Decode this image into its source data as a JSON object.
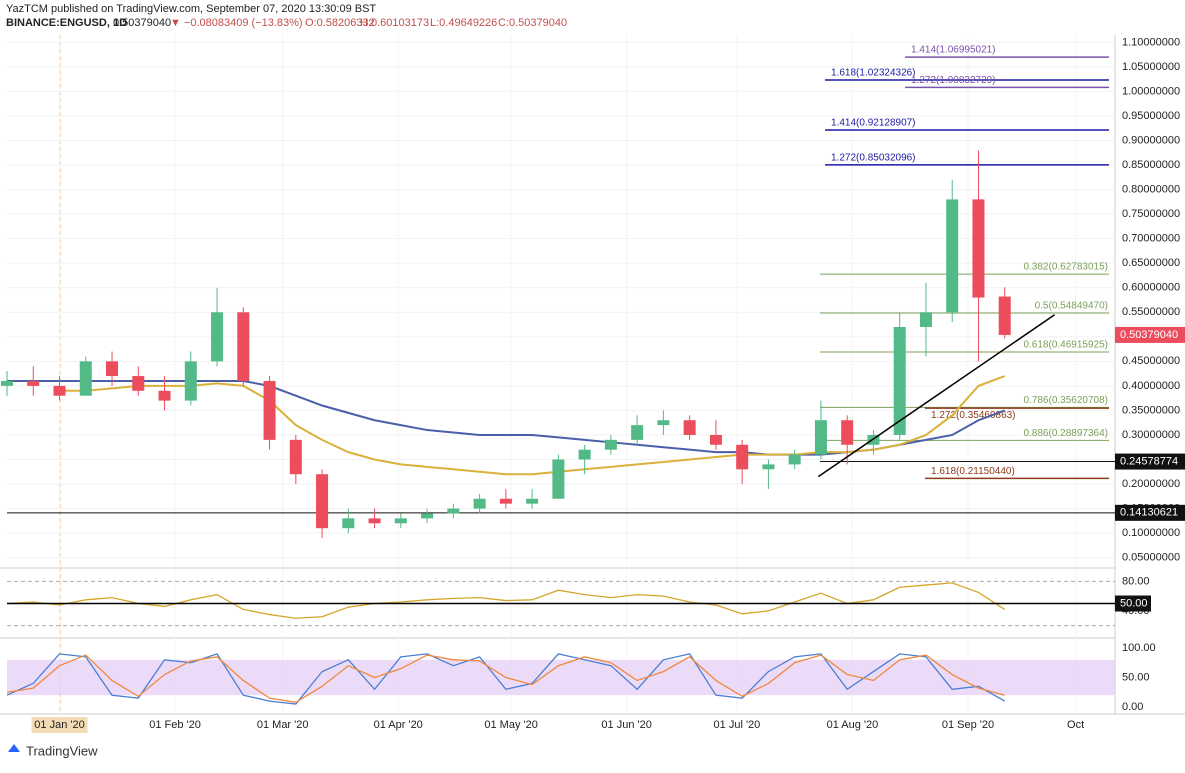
{
  "header": {
    "publisher": "YazTCM published on TradingView.com, September 07, 2020 13:30:09 BST",
    "symbol": "BINANCE:ENGUSD, 1D",
    "price": "0.50379040",
    "change": "▼ −0.08083409 (−13.83%)",
    "open": "O:0.58206332",
    "high": "H:0.60103173",
    "low": "L:0.49649226",
    "close": "C:0.50379040"
  },
  "chart_data": [
    {
      "type": "candlestick",
      "x": [
        0,
        1,
        2,
        3,
        4,
        5,
        6,
        7,
        8,
        9,
        10,
        11,
        12,
        13,
        14,
        15,
        16,
        17,
        18,
        19,
        20,
        21,
        22,
        23,
        24,
        25,
        26,
        27,
        28,
        29,
        30,
        31,
        32,
        33,
        34,
        35,
        36,
        37,
        38
      ],
      "open": [
        0.4,
        0.41,
        0.4,
        0.38,
        0.45,
        0.42,
        0.39,
        0.37,
        0.45,
        0.55,
        0.41,
        0.29,
        0.22,
        0.11,
        0.13,
        0.12,
        0.13,
        0.14,
        0.15,
        0.17,
        0.16,
        0.17,
        0.25,
        0.27,
        0.29,
        0.32,
        0.33,
        0.3,
        0.28,
        0.23,
        0.24,
        0.26,
        0.33,
        0.28,
        0.3,
        0.52,
        0.55,
        0.78,
        0.58206332
      ],
      "high": [
        0.43,
        0.44,
        0.42,
        0.46,
        0.47,
        0.44,
        0.42,
        0.47,
        0.6,
        0.56,
        0.42,
        0.3,
        0.23,
        0.15,
        0.15,
        0.14,
        0.15,
        0.16,
        0.18,
        0.19,
        0.19,
        0.26,
        0.28,
        0.3,
        0.34,
        0.35,
        0.34,
        0.33,
        0.29,
        0.25,
        0.27,
        0.37,
        0.34,
        0.31,
        0.55,
        0.61,
        0.82,
        0.88,
        0.60103173
      ],
      "low": [
        0.38,
        0.38,
        0.37,
        0.38,
        0.4,
        0.38,
        0.35,
        0.36,
        0.44,
        0.4,
        0.27,
        0.2,
        0.09,
        0.1,
        0.11,
        0.11,
        0.12,
        0.13,
        0.14,
        0.15,
        0.15,
        0.17,
        0.22,
        0.26,
        0.28,
        0.3,
        0.29,
        0.27,
        0.2,
        0.19,
        0.23,
        0.25,
        0.24,
        0.26,
        0.29,
        0.46,
        0.53,
        0.45,
        0.49649226
      ],
      "close": [
        0.41,
        0.4,
        0.38,
        0.45,
        0.42,
        0.39,
        0.37,
        0.45,
        0.55,
        0.41,
        0.29,
        0.22,
        0.11,
        0.13,
        0.12,
        0.13,
        0.14,
        0.15,
        0.17,
        0.16,
        0.17,
        0.25,
        0.27,
        0.29,
        0.32,
        0.33,
        0.3,
        0.28,
        0.23,
        0.24,
        0.26,
        0.33,
        0.28,
        0.3,
        0.52,
        0.55,
        0.78,
        0.58,
        0.5037904
      ],
      "up_color": "#53b987",
      "down_color": "#eb4d5c",
      "xlim": [
        0,
        42.2
      ],
      "xticks": [
        {
          "value": 2.0,
          "label": "01 Jan '20"
        },
        {
          "value": 6.4,
          "label": "01 Feb '20"
        },
        {
          "value": 10.5,
          "label": "01 Mar '20"
        },
        {
          "value": 14.9,
          "label": "01 Apr '20"
        },
        {
          "value": 19.2,
          "label": "01 May '20"
        },
        {
          "value": 23.6,
          "label": "01 Jun '20"
        },
        {
          "value": 27.8,
          "label": "01 Jul '20"
        },
        {
          "value": 32.2,
          "label": "01 Aug '20"
        },
        {
          "value": 36.6,
          "label": "01 Sep '20"
        },
        {
          "value": 40.7,
          "label": "Oct"
        }
      ],
      "ylim": [
        0.035,
        1.115
      ],
      "yticks": [
        {
          "value": 0.05,
          "label": "0.05000000"
        },
        {
          "value": 0.1,
          "label": "0.10000000"
        },
        {
          "value": 0.15,
          "label": "0.15000000"
        },
        {
          "value": 0.2,
          "label": "0.20000000"
        },
        {
          "value": 0.25,
          "label": "0.25000000"
        },
        {
          "value": 0.3,
          "label": "0.30000000"
        },
        {
          "value": 0.35,
          "label": "0.35000000"
        },
        {
          "value": 0.4,
          "label": "0.40000000"
        },
        {
          "value": 0.45,
          "label": "0.45000000"
        },
        {
          "value": 0.5,
          "label": "0.50000000"
        },
        {
          "value": 0.55,
          "label": "0.55000000"
        },
        {
          "value": 0.6,
          "label": "0.60000000"
        },
        {
          "value": 0.65,
          "label": "0.65000000"
        },
        {
          "value": 0.7,
          "label": "0.70000000"
        },
        {
          "value": 0.75,
          "label": "0.75000000"
        },
        {
          "value": 0.8,
          "label": "0.80000000"
        },
        {
          "value": 0.85,
          "label": "0.85000000"
        },
        {
          "value": 0.9,
          "label": "0.90000000"
        },
        {
          "value": 0.95,
          "label": "0.95000000"
        },
        {
          "value": 1.0,
          "label": "1.00000000"
        },
        {
          "value": 1.05,
          "label": "1.05000000"
        },
        {
          "value": 1.1,
          "label": "1.10000000"
        }
      ],
      "lines": [
        {
          "color": "#4a5fa8",
          "values": [
            0.41,
            0.41,
            0.41,
            0.41,
            0.41,
            0.41,
            0.41,
            0.41,
            0.41,
            0.41,
            0.4,
            0.38,
            0.36,
            0.345,
            0.33,
            0.32,
            0.31,
            0.305,
            0.3,
            0.3,
            0.3,
            0.295,
            0.29,
            0.285,
            0.28,
            0.275,
            0.27,
            0.265,
            0.265,
            0.26,
            0.26,
            0.26,
            0.265,
            0.27,
            0.28,
            0.29,
            0.3,
            0.33,
            0.35
          ]
        },
        {
          "color": "#d9b13b",
          "values": [
            null,
            null,
            0.39,
            0.39,
            0.395,
            0.4,
            0.4,
            0.4,
            0.405,
            0.4,
            0.37,
            0.32,
            0.29,
            0.265,
            0.25,
            0.24,
            0.235,
            0.23,
            0.225,
            0.22,
            0.22,
            0.225,
            0.23,
            0.235,
            0.24,
            0.245,
            0.25,
            0.255,
            0.26,
            0.26,
            0.26,
            0.265,
            0.265,
            0.27,
            0.28,
            0.3,
            0.34,
            0.4,
            0.42
          ]
        }
      ],
      "levels": [
        {
          "label": "1.414(1.06995021)",
          "value": 1.06995021,
          "color": "#7b52ab"
        },
        {
          "label": "1.618(1.02324326)",
          "value": 1.02324326,
          "color": "#1a1aa6"
        },
        {
          "label": "1.272(1.00832729)",
          "value": 1.00832729,
          "color": "#7b52ab"
        },
        {
          "label": "1.414(0.92128907)",
          "value": 0.92128907,
          "color": "#1a1aa6"
        },
        {
          "label": "1.272(0.85032096)",
          "value": 0.85032096,
          "color": "#1a1aa6"
        },
        {
          "label": "0.382(0.62783015)",
          "value": 0.62783015,
          "color": "#7ba05b"
        },
        {
          "label": "0.5(0.54849470)",
          "value": 0.5484947,
          "color": "#7ba05b"
        },
        {
          "label": "0.618(0.46915925)",
          "value": 0.46915925,
          "color": "#7ba05b"
        },
        {
          "label": "0.786(0.35620708)",
          "value": 0.35620708,
          "color": "#7ba05b"
        },
        {
          "label": "1.272(0.35460863)",
          "value": 0.35460863,
          "color": "#8b3a1a"
        },
        {
          "label": "0.886(0.28897364)",
          "value": 0.28897364,
          "color": "#7ba05b"
        },
        {
          "label": "1.618(0.21150440)",
          "value": 0.2115044,
          "color": "#8b3a1a"
        }
      ],
      "price_lines": [
        {
          "value": 0.24578774,
          "label": "0.24578774"
        },
        {
          "value": 0.14130621,
          "label": "0.14130621"
        }
      ],
      "last_price": {
        "value": 0.5037904,
        "label": "0.50379040",
        "color": "#eb4d5c"
      },
      "trendline": {
        "x": [
          30.9,
          39.9
        ],
        "y": [
          0.215,
          0.545
        ]
      }
    },
    {
      "type": "line",
      "x": [
        0,
        1,
        2,
        3,
        4,
        5,
        6,
        7,
        8,
        9,
        10,
        11,
        12,
        13,
        14,
        15,
        16,
        17,
        18,
        19,
        20,
        21,
        22,
        23,
        24,
        25,
        26,
        27,
        28,
        29,
        30,
        31,
        32,
        33,
        34,
        35,
        36,
        37,
        38
      ],
      "values": [
        50,
        52,
        48,
        55,
        58,
        50,
        46,
        55,
        62,
        42,
        35,
        30,
        32,
        45,
        50,
        52,
        55,
        57,
        58,
        54,
        55,
        68,
        62,
        58,
        62,
        60,
        52,
        48,
        36,
        40,
        52,
        64,
        50,
        55,
        72,
        75,
        78,
        65,
        42
      ],
      "color": "#d4a62a",
      "ylim": [
        10,
        90
      ],
      "yticks": [
        {
          "value": 80,
          "label": "80.00"
        },
        {
          "value": 40,
          "label": "40.00"
        }
      ],
      "mid": {
        "value": 50,
        "label": "50.00"
      },
      "band": [
        20,
        80
      ]
    },
    {
      "type": "line",
      "x": [
        0,
        1,
        2,
        3,
        4,
        5,
        6,
        7,
        8,
        9,
        10,
        11,
        12,
        13,
        14,
        15,
        16,
        17,
        18,
        19,
        20,
        21,
        22,
        23,
        24,
        25,
        26,
        27,
        28,
        29,
        30,
        31,
        32,
        33,
        34,
        35,
        36,
        37,
        38
      ],
      "series": [
        {
          "color": "#4a7fd4",
          "values": [
            20,
            40,
            90,
            85,
            20,
            15,
            80,
            75,
            90,
            20,
            10,
            5,
            60,
            80,
            30,
            85,
            90,
            70,
            85,
            30,
            40,
            90,
            80,
            70,
            30,
            80,
            90,
            20,
            15,
            60,
            85,
            90,
            30,
            60,
            90,
            85,
            30,
            35,
            10
          ]
        },
        {
          "color": "#f0883e",
          "values": [
            25,
            32,
            70,
            88,
            45,
            18,
            55,
            78,
            85,
            45,
            15,
            8,
            35,
            70,
            50,
            65,
            88,
            80,
            78,
            50,
            38,
            70,
            85,
            75,
            45,
            60,
            85,
            45,
            18,
            40,
            75,
            88,
            55,
            45,
            80,
            88,
            55,
            32,
            20
          ]
        }
      ],
      "ylim": [
        0,
        100
      ],
      "yticks": [
        {
          "value": 100,
          "label": "100.00"
        },
        {
          "value": 50,
          "label": "50.00"
        },
        {
          "value": 0,
          "label": "0.00"
        }
      ],
      "band": [
        20,
        80
      ],
      "band_color": "#e6cff5"
    }
  ],
  "footer": {
    "brand": "TradingView"
  }
}
